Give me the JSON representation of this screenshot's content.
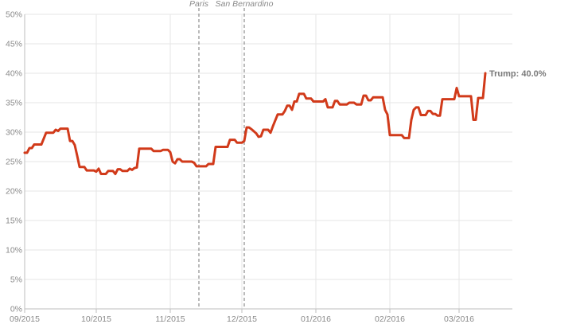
{
  "chart_data": {
    "type": "line",
    "title": "",
    "xlabel": "",
    "ylabel": "",
    "ylim": [
      0,
      50
    ],
    "y_ticks": [
      0,
      5,
      10,
      15,
      20,
      25,
      30,
      35,
      40,
      45,
      50
    ],
    "y_tick_format": "percent",
    "xlim": [
      "2015-09-01",
      "2016-03-25"
    ],
    "x_ticks": [
      {
        "date": "2015-09-01",
        "label": "09/2015"
      },
      {
        "date": "2015-10-01",
        "label": "10/2015"
      },
      {
        "date": "2015-11-01",
        "label": "11/2015"
      },
      {
        "date": "2015-12-01",
        "label": "12/2015"
      },
      {
        "date": "2016-01-01",
        "label": "01/2016"
      },
      {
        "date": "2016-02-01",
        "label": "02/2016"
      },
      {
        "date": "2016-03-01",
        "label": "03/2016"
      }
    ],
    "grid": true,
    "events": [
      {
        "date": "2015-11-13",
        "label": "Paris"
      },
      {
        "date": "2015-12-02",
        "label": "San Bernardino"
      }
    ],
    "end_label": "Trump: 40.0%",
    "series": [
      {
        "name": "Trump",
        "color": "#d13a1a",
        "points": [
          [
            "2015-09-01",
            26.5
          ],
          [
            "2015-09-02",
            26.5
          ],
          [
            "2015-09-03",
            27.3
          ],
          [
            "2015-09-04",
            27.3
          ],
          [
            "2015-09-05",
            27.9
          ],
          [
            "2015-09-08",
            27.9
          ],
          [
            "2015-09-10",
            29.9
          ],
          [
            "2015-09-13",
            29.9
          ],
          [
            "2015-09-14",
            30.4
          ],
          [
            "2015-09-15",
            30.2
          ],
          [
            "2015-09-16",
            30.6
          ],
          [
            "2015-09-19",
            30.6
          ],
          [
            "2015-09-20",
            28.5
          ],
          [
            "2015-09-21",
            28.5
          ],
          [
            "2015-09-22",
            27.8
          ],
          [
            "2015-09-23",
            26.0
          ],
          [
            "2015-09-24",
            24.1
          ],
          [
            "2015-09-26",
            24.1
          ],
          [
            "2015-09-27",
            23.5
          ],
          [
            "2015-09-30",
            23.5
          ],
          [
            "2015-10-01",
            23.3
          ],
          [
            "2015-10-02",
            23.8
          ],
          [
            "2015-10-03",
            22.9
          ],
          [
            "2015-10-05",
            22.9
          ],
          [
            "2015-10-06",
            23.4
          ],
          [
            "2015-10-08",
            23.4
          ],
          [
            "2015-10-09",
            22.9
          ],
          [
            "2015-10-10",
            23.7
          ],
          [
            "2015-10-11",
            23.7
          ],
          [
            "2015-10-12",
            23.4
          ],
          [
            "2015-10-14",
            23.4
          ],
          [
            "2015-10-15",
            23.8
          ],
          [
            "2015-10-16",
            23.6
          ],
          [
            "2015-10-17",
            23.9
          ],
          [
            "2015-10-18",
            24.0
          ],
          [
            "2015-10-19",
            27.2
          ],
          [
            "2015-10-24",
            27.2
          ],
          [
            "2015-10-25",
            26.8
          ],
          [
            "2015-10-28",
            26.8
          ],
          [
            "2015-10-29",
            27.0
          ],
          [
            "2015-10-31",
            27.0
          ],
          [
            "2015-11-01",
            26.6
          ],
          [
            "2015-11-02",
            25.0
          ],
          [
            "2015-11-03",
            24.7
          ],
          [
            "2015-11-04",
            25.4
          ],
          [
            "2015-11-05",
            25.4
          ],
          [
            "2015-11-06",
            25.0
          ],
          [
            "2015-11-10",
            25.0
          ],
          [
            "2015-11-11",
            24.8
          ],
          [
            "2015-11-12",
            24.2
          ],
          [
            "2015-11-16",
            24.2
          ],
          [
            "2015-11-17",
            24.6
          ],
          [
            "2015-11-19",
            24.6
          ],
          [
            "2015-11-20",
            27.5
          ],
          [
            "2015-11-25",
            27.5
          ],
          [
            "2015-11-26",
            28.7
          ],
          [
            "2015-11-28",
            28.7
          ],
          [
            "2015-11-29",
            28.2
          ],
          [
            "2015-12-01",
            28.2
          ],
          [
            "2015-12-02",
            28.5
          ],
          [
            "2015-12-03",
            30.8
          ],
          [
            "2015-12-04",
            30.8
          ],
          [
            "2015-12-05",
            30.5
          ],
          [
            "2015-12-07",
            29.8
          ],
          [
            "2015-12-08",
            29.2
          ],
          [
            "2015-12-09",
            29.3
          ],
          [
            "2015-12-10",
            30.4
          ],
          [
            "2015-12-12",
            30.4
          ],
          [
            "2015-12-13",
            29.9
          ],
          [
            "2015-12-14",
            31.0
          ],
          [
            "2015-12-16",
            33.0
          ],
          [
            "2015-12-18",
            33.0
          ],
          [
            "2015-12-19",
            33.6
          ],
          [
            "2015-12-20",
            34.5
          ],
          [
            "2015-12-21",
            34.5
          ],
          [
            "2015-12-22",
            33.8
          ],
          [
            "2015-12-23",
            35.2
          ],
          [
            "2015-12-24",
            35.2
          ],
          [
            "2015-12-25",
            36.5
          ],
          [
            "2015-12-27",
            36.5
          ],
          [
            "2015-12-28",
            35.7
          ],
          [
            "2015-12-30",
            35.7
          ],
          [
            "2015-12-31",
            35.2
          ],
          [
            "2016-01-04",
            35.2
          ],
          [
            "2016-01-05",
            35.6
          ],
          [
            "2016-01-06",
            34.2
          ],
          [
            "2016-01-08",
            34.2
          ],
          [
            "2016-01-09",
            35.3
          ],
          [
            "2016-01-10",
            35.3
          ],
          [
            "2016-01-11",
            34.7
          ],
          [
            "2016-01-14",
            34.7
          ],
          [
            "2016-01-15",
            35.0
          ],
          [
            "2016-01-17",
            35.0
          ],
          [
            "2016-01-18",
            34.7
          ],
          [
            "2016-01-20",
            34.7
          ],
          [
            "2016-01-21",
            36.2
          ],
          [
            "2016-01-22",
            36.2
          ],
          [
            "2016-01-23",
            35.4
          ],
          [
            "2016-01-24",
            35.4
          ],
          [
            "2016-01-25",
            35.9
          ],
          [
            "2016-01-29",
            35.9
          ],
          [
            "2016-01-30",
            33.8
          ],
          [
            "2016-01-31",
            33.0
          ],
          [
            "2016-02-01",
            29.5
          ],
          [
            "2016-02-06",
            29.5
          ],
          [
            "2016-02-07",
            29.0
          ],
          [
            "2016-02-09",
            29.0
          ],
          [
            "2016-02-10",
            32.1
          ],
          [
            "2016-02-11",
            33.8
          ],
          [
            "2016-02-12",
            34.2
          ],
          [
            "2016-02-13",
            34.2
          ],
          [
            "2016-02-14",
            32.9
          ],
          [
            "2016-02-16",
            32.9
          ],
          [
            "2016-02-17",
            33.6
          ],
          [
            "2016-02-18",
            33.6
          ],
          [
            "2016-02-19",
            33.1
          ],
          [
            "2016-02-20",
            33.1
          ],
          [
            "2016-02-21",
            32.8
          ],
          [
            "2016-02-22",
            32.8
          ],
          [
            "2016-02-23",
            35.6
          ],
          [
            "2016-02-28",
            35.6
          ],
          [
            "2016-02-29",
            37.5
          ],
          [
            "2016-03-01",
            36.1
          ],
          [
            "2016-03-06",
            36.1
          ],
          [
            "2016-03-07",
            32.1
          ],
          [
            "2016-03-08",
            32.1
          ],
          [
            "2016-03-09",
            35.8
          ],
          [
            "2016-03-11",
            35.8
          ],
          [
            "2016-03-12",
            40.0
          ]
        ]
      }
    ]
  }
}
